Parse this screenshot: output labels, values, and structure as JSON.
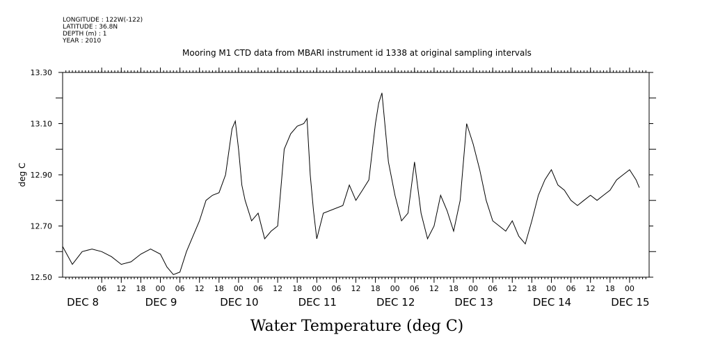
{
  "metadata": {
    "longitude": "LONGITUDE : 122W(-122)",
    "latitude": "LATITUDE : 36.8N",
    "depth": "DEPTH (m) : 1",
    "year": "YEAR : 2010"
  },
  "chart_data": {
    "type": "line",
    "title": "Mooring M1 CTD data from MBARI instrument id 1338 at original sampling intervals",
    "xlabel": "Water Temperature (deg C)",
    "ylabel": "deg C",
    "ylim": [
      12.5,
      13.3
    ],
    "yticks": [
      "12.50",
      "12.70",
      "12.90",
      "13.10",
      "13.30"
    ],
    "xlim": [
      "2010-12-07T18:00",
      "2010-12-15T06:00"
    ],
    "hour_tick_labels": [
      "06",
      "12",
      "18",
      "00",
      "06",
      "12",
      "18",
      "00",
      "06",
      "12",
      "18",
      "00",
      "06",
      "12",
      "18",
      "00",
      "06",
      "12",
      "18",
      "00",
      "06",
      "12",
      "18",
      "00",
      "06",
      "12",
      "18",
      "00",
      "06",
      "12",
      "18",
      "00"
    ],
    "day_labels": [
      {
        "text": "DEC  8",
        "date": "2010-12-08"
      },
      {
        "text": "DEC  9",
        "date": "2010-12-09"
      },
      {
        "text": "DEC 10",
        "date": "2010-12-10"
      },
      {
        "text": "DEC 11",
        "date": "2010-12-11"
      },
      {
        "text": "DEC 12",
        "date": "2010-12-12"
      },
      {
        "text": "DEC 13",
        "date": "2010-12-13"
      },
      {
        "text": "DEC 14",
        "date": "2010-12-14"
      },
      {
        "text": "DEC 15",
        "date": "2010-12-15"
      }
    ],
    "grid": false,
    "series": [
      {
        "x": [
          "2010-12-07T18:00",
          "2010-12-07T21:00",
          "2010-12-08T00:00",
          "2010-12-08T03:00",
          "2010-12-08T06:00",
          "2010-12-08T09:00",
          "2010-12-08T12:00",
          "2010-12-08T15:00",
          "2010-12-08T18:00",
          "2010-12-08T21:00",
          "2010-12-09T00:00",
          "2010-12-09T02:00",
          "2010-12-09T04:00",
          "2010-12-09T06:00",
          "2010-12-09T08:00",
          "2010-12-09T10:00",
          "2010-12-09T12:00",
          "2010-12-09T14:00",
          "2010-12-09T16:00",
          "2010-12-09T18:00",
          "2010-12-09T20:00",
          "2010-12-09T22:00",
          "2010-12-09T23:00",
          "2010-12-10T00:00",
          "2010-12-10T01:00",
          "2010-12-10T02:00",
          "2010-12-10T04:00",
          "2010-12-10T06:00",
          "2010-12-10T08:00",
          "2010-12-10T10:00",
          "2010-12-10T12:00",
          "2010-12-10T14:00",
          "2010-12-10T16:00",
          "2010-12-10T18:00",
          "2010-12-10T20:00",
          "2010-12-10T21:00",
          "2010-12-10T22:00",
          "2010-12-10T23:00",
          "2010-12-11T00:00",
          "2010-12-11T02:00",
          "2010-12-11T08:00",
          "2010-12-11T10:00",
          "2010-12-11T12:00",
          "2010-12-11T14:00",
          "2010-12-11T16:00",
          "2010-12-11T18:00",
          "2010-12-11T19:00",
          "2010-12-11T20:00",
          "2010-12-11T22:00",
          "2010-12-12T00:00",
          "2010-12-12T02:00",
          "2010-12-12T04:00",
          "2010-12-12T06:00",
          "2010-12-12T08:00",
          "2010-12-12T10:00",
          "2010-12-12T12:00",
          "2010-12-12T14:00",
          "2010-12-12T16:00",
          "2010-12-12T18:00",
          "2010-12-12T20:00",
          "2010-12-12T22:00",
          "2010-12-13T00:00",
          "2010-12-13T02:00",
          "2010-12-13T04:00",
          "2010-12-13T06:00",
          "2010-12-13T08:00",
          "2010-12-13T10:00",
          "2010-12-13T12:00",
          "2010-12-13T14:00",
          "2010-12-13T16:00",
          "2010-12-13T18:00",
          "2010-12-13T20:00",
          "2010-12-13T22:00",
          "2010-12-14T00:00",
          "2010-12-14T02:00",
          "2010-12-14T04:00",
          "2010-12-14T06:00",
          "2010-12-14T08:00",
          "2010-12-14T10:00",
          "2010-12-14T12:00",
          "2010-12-14T14:00",
          "2010-12-14T16:00",
          "2010-12-14T18:00",
          "2010-12-14T20:00",
          "2010-12-14T22:00",
          "2010-12-15T00:00",
          "2010-12-15T02:00",
          "2010-12-15T03:00"
        ],
        "values": [
          12.62,
          12.55,
          12.6,
          12.61,
          12.6,
          12.58,
          12.55,
          12.56,
          12.59,
          12.61,
          12.59,
          12.54,
          12.51,
          12.52,
          12.6,
          12.66,
          12.72,
          12.8,
          12.82,
          12.83,
          12.9,
          13.08,
          13.11,
          13.0,
          12.86,
          12.8,
          12.72,
          12.75,
          12.65,
          12.68,
          12.7,
          13.0,
          13.06,
          13.09,
          13.1,
          13.12,
          12.9,
          12.76,
          12.65,
          12.75,
          12.78,
          12.86,
          12.8,
          12.84,
          12.88,
          13.1,
          13.18,
          13.22,
          12.95,
          12.82,
          12.72,
          12.75,
          12.95,
          12.75,
          12.65,
          12.7,
          12.82,
          12.76,
          12.68,
          12.8,
          13.1,
          13.02,
          12.92,
          12.8,
          12.72,
          12.7,
          12.68,
          12.72,
          12.66,
          12.63,
          12.72,
          12.82,
          12.88,
          12.92,
          12.86,
          12.84,
          12.8,
          12.78,
          12.8,
          12.82,
          12.8,
          12.82,
          12.84,
          12.88,
          12.9,
          12.92,
          12.88,
          12.85
        ]
      }
    ]
  }
}
